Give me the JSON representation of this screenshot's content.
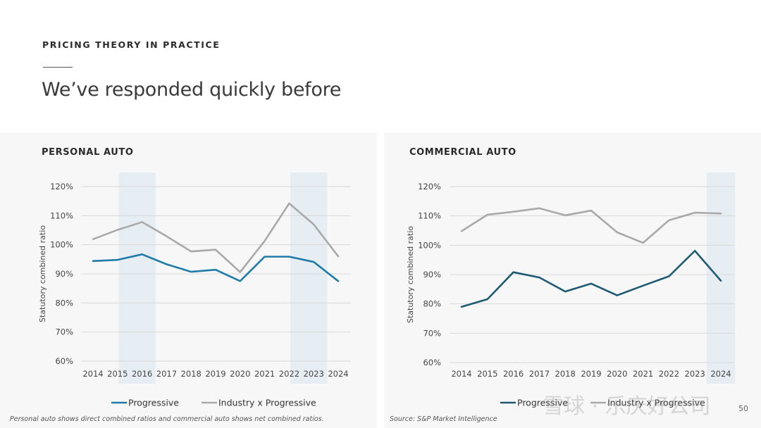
{
  "header": {
    "eyebrow": "PRICING THEORY IN PRACTICE",
    "title": "We’ve responded quickly before"
  },
  "colors": {
    "progressive_personal": "#1f7ba8",
    "progressive_commercial": "#1e5b73",
    "industry": "#a9a9a9",
    "band": "#e3ebf2",
    "grid": "#d9d9d9",
    "panel_bg": "#f7f7f7"
  },
  "chart_data": [
    {
      "type": "line",
      "title": "PERSONAL AUTO",
      "xlabel": "",
      "ylabel": "Statutory combined ratio",
      "x": [
        "2014",
        "2015",
        "2016",
        "2017",
        "2018",
        "2019",
        "2020",
        "2021",
        "2022",
        "2023",
        "2024"
      ],
      "yticks": [
        "60%",
        "70%",
        "80%",
        "90%",
        "100%",
        "110%",
        "120%"
      ],
      "ylim": [
        60,
        120
      ],
      "grid": true,
      "shaded_periods": [
        [
          "2015",
          "2016"
        ],
        [
          "2022",
          "2023"
        ]
      ],
      "series": [
        {
          "name": "Progressive",
          "color_key": "progressive_personal",
          "values": [
            94.4,
            94.8,
            96.7,
            93.3,
            90.7,
            91.4,
            87.5,
            95.9,
            95.9,
            94.1,
            87.5
          ]
        },
        {
          "name": "Industry x Progressive",
          "color_key": "industry",
          "values": [
            101.9,
            105.1,
            107.8,
            102.9,
            97.7,
            98.3,
            90.6,
            101.3,
            114.2,
            107.0,
            96.0
          ]
        }
      ],
      "legend": [
        "Progressive",
        "Industry x Progressive"
      ],
      "legend_position": "bottom"
    },
    {
      "type": "line",
      "title": "COMMERCIAL AUTO",
      "xlabel": "",
      "ylabel": "Statutory combined ratio",
      "x": [
        "2014",
        "2015",
        "2016",
        "2017",
        "2018",
        "2019",
        "2020",
        "2021",
        "2022",
        "2023",
        "2024"
      ],
      "yticks": [
        "60%",
        "70%",
        "80%",
        "90%",
        "100%",
        "110%",
        "120%"
      ],
      "ylim": [
        60,
        120
      ],
      "grid": true,
      "shaded_periods": [
        [
          "2024",
          "2024"
        ]
      ],
      "series": [
        {
          "name": "Progressive",
          "color_key": "progressive_commercial",
          "values": [
            79.0,
            81.6,
            90.8,
            89.0,
            84.2,
            86.9,
            82.9,
            86.2,
            89.4,
            98.1,
            87.9
          ]
        },
        {
          "name": "Industry x Progressive",
          "color_key": "industry",
          "values": [
            104.8,
            110.4,
            111.4,
            112.6,
            110.2,
            111.8,
            104.4,
            100.8,
            108.5,
            111.1,
            110.8
          ]
        }
      ],
      "legend": [
        "Progressive",
        "Industry x Progressive"
      ],
      "legend_position": "bottom"
    }
  ],
  "footnotes": {
    "left": "Personal auto shows direct combined ratios and commercial auto shows net combined ratios.",
    "right": "Source: S&P Market Intelligence"
  },
  "page_number": "50",
  "watermark": "雪球 · 乐庆好公司"
}
